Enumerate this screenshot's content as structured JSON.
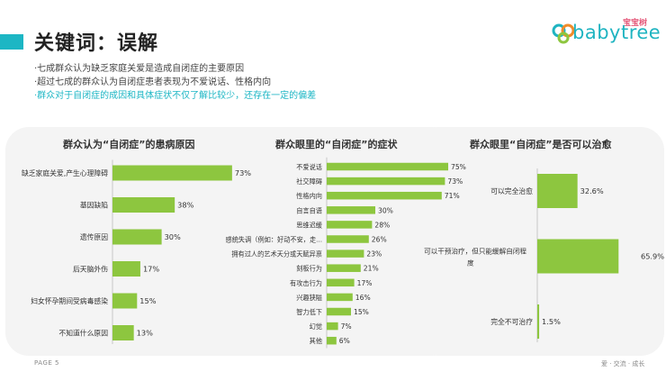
{
  "header": {
    "title": "关键词：误解",
    "bullets": [
      "·七成群众认为缺乏家庭关爱是造成自闭症的主要原因",
      "·超过七成的群众认为自闭症患者表现为不爱说话、性格内向",
      "·群众对于自闭症的成因和具体症状不仅了解比较少，还存在一定的偏差"
    ]
  },
  "logo": {
    "text": "babytree",
    "sub": "宝宝树"
  },
  "footer": {
    "page": "PAGE  5",
    "slogan": "爱 · 交流 · 成长"
  },
  "colors": {
    "bar": "#8dc63f",
    "accent": "#1cb6c4",
    "panel": "#f4f4f4"
  },
  "chart_data": [
    {
      "type": "bar",
      "orientation": "horizontal",
      "title": "群众认为“自闭症”的患病原因",
      "categories": [
        "缺乏家庭关爱,产生心理障碍",
        "基因缺陷",
        "遗传原因",
        "后天脑外伤",
        "妇女怀孕期间受病毒感染",
        "不知道什么原因"
      ],
      "values": [
        73,
        38,
        30,
        17,
        15,
        13
      ],
      "labels": [
        "73%",
        "38%",
        "30%",
        "17%",
        "15%",
        "13%"
      ],
      "xlim": [
        0,
        100
      ]
    },
    {
      "type": "bar",
      "orientation": "horizontal",
      "title": "群众眼里的“自闭症”的症状",
      "categories": [
        "不爱说话",
        "社交障碍",
        "性格内向",
        "自言自语",
        "思维迟缓",
        "感统失调（例如：好动不安，走...",
        "拥有过人的艺术天分或天赋异禀",
        "刻板行为",
        "有攻击行为",
        "兴趣狭隘",
        "智力低下",
        "幻觉",
        "其他"
      ],
      "values": [
        75,
        73,
        71,
        30,
        28,
        26,
        23,
        21,
        17,
        16,
        15,
        7,
        6
      ],
      "labels": [
        "75%",
        "73%",
        "71%",
        "30%",
        "28%",
        "26%",
        "23%",
        "21%",
        "17%",
        "16%",
        "15%",
        "7%",
        "6%"
      ],
      "xlim": [
        0,
        100
      ]
    },
    {
      "type": "bar",
      "orientation": "horizontal",
      "title": "群众眼里“自闭症”是否可以治愈",
      "categories": [
        "可以完全治愈",
        "可以干预治疗，但只能缓解自闭程度",
        "完全不可治疗"
      ],
      "values": [
        32.6,
        65.9,
        1.5
      ],
      "labels": [
        "32.6%",
        "65.9%",
        "1.5%"
      ],
      "xlim": [
        0,
        100
      ]
    }
  ]
}
